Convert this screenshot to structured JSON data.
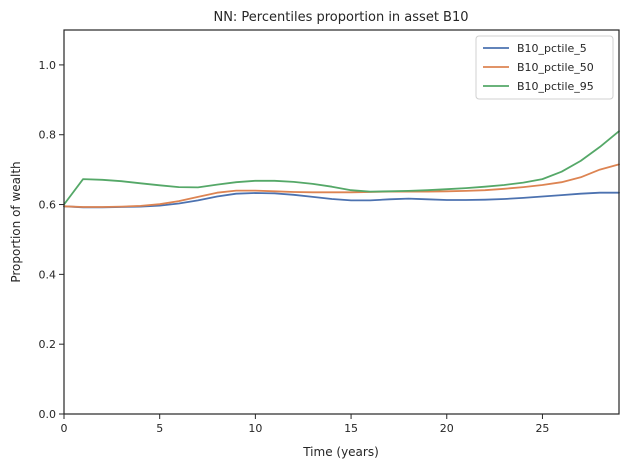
{
  "chart_data": {
    "type": "line",
    "title": "NN: Percentiles proportion in asset B10",
    "xlabel": "Time (years)",
    "ylabel": "Proportion of wealth",
    "xlim": [
      0,
      29
    ],
    "ylim": [
      0,
      1.1
    ],
    "xticks": [
      0,
      5,
      10,
      15,
      20,
      25
    ],
    "xtick_labels": [
      "0",
      "5",
      "10",
      "15",
      "20",
      "25"
    ],
    "yticks": [
      0.0,
      0.2,
      0.4,
      0.6,
      0.8,
      1.0
    ],
    "ytick_labels": [
      "0.0",
      "0.2",
      "0.4",
      "0.6",
      "0.8",
      "1.0"
    ],
    "grid": false,
    "legend_position": "top-right",
    "x": [
      0,
      1,
      2,
      3,
      4,
      5,
      6,
      7,
      8,
      9,
      10,
      11,
      12,
      13,
      14,
      15,
      16,
      17,
      18,
      19,
      20,
      21,
      22,
      23,
      24,
      25,
      26,
      27,
      28,
      29
    ],
    "series": [
      {
        "name": "B10_pctile_5",
        "color": "#4c72b0",
        "values": [
          0.595,
          0.592,
          0.592,
          0.593,
          0.594,
          0.597,
          0.603,
          0.612,
          0.623,
          0.631,
          0.633,
          0.632,
          0.628,
          0.622,
          0.616,
          0.612,
          0.612,
          0.615,
          0.617,
          0.615,
          0.613,
          0.613,
          0.614,
          0.616,
          0.619,
          0.623,
          0.627,
          0.631,
          0.634,
          0.634
        ]
      },
      {
        "name": "B10_pctile_50",
        "color": "#dd8452",
        "values": [
          0.595,
          0.593,
          0.593,
          0.594,
          0.596,
          0.601,
          0.61,
          0.622,
          0.634,
          0.64,
          0.64,
          0.638,
          0.636,
          0.635,
          0.635,
          0.635,
          0.636,
          0.637,
          0.637,
          0.637,
          0.638,
          0.639,
          0.641,
          0.645,
          0.65,
          0.656,
          0.664,
          0.678,
          0.7,
          0.715
        ]
      },
      {
        "name": "B10_pctile_95",
        "color": "#55a868",
        "values": [
          0.6,
          0.673,
          0.671,
          0.667,
          0.661,
          0.655,
          0.65,
          0.649,
          0.657,
          0.664,
          0.668,
          0.668,
          0.665,
          0.659,
          0.651,
          0.641,
          0.637,
          0.638,
          0.639,
          0.641,
          0.644,
          0.647,
          0.651,
          0.656,
          0.663,
          0.673,
          0.694,
          0.725,
          0.765,
          0.81
        ]
      }
    ]
  }
}
